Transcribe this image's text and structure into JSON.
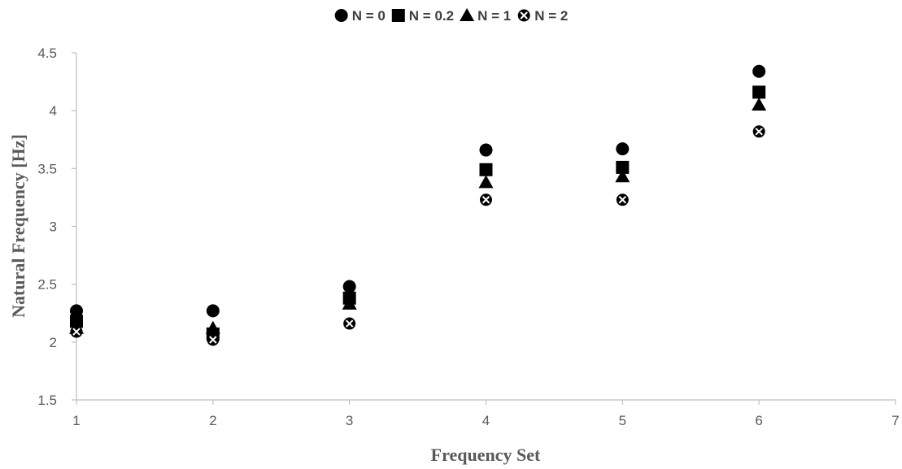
{
  "chart_data": {
    "type": "scatter",
    "title": "",
    "xlabel": "Frequency Set",
    "ylabel": "Natural Frequency [Hz]",
    "xlim": [
      1,
      7
    ],
    "ylim": [
      1.5,
      4.5
    ],
    "x_ticks": [
      "1",
      "2",
      "3",
      "4",
      "5",
      "6",
      "7"
    ],
    "y_ticks": [
      "1.5",
      "2",
      "2.5",
      "3",
      "3.5",
      "4",
      "4.5"
    ],
    "grid": false,
    "legend_position": "top",
    "x": [
      1,
      2,
      3,
      4,
      5,
      6
    ],
    "series": [
      {
        "name": "N = 0",
        "marker": "circle",
        "values": [
          2.27,
          2.27,
          2.48,
          3.66,
          3.67,
          4.34
        ]
      },
      {
        "name": "N = 0.2",
        "marker": "square",
        "values": [
          2.18,
          2.07,
          2.38,
          3.49,
          3.51,
          4.16
        ]
      },
      {
        "name": "N = 1",
        "marker": "triangle",
        "values": [
          2.12,
          2.12,
          2.33,
          3.38,
          3.43,
          4.05
        ]
      },
      {
        "name": "N = 2",
        "marker": "x-circle",
        "values": [
          2.09,
          2.02,
          2.16,
          3.23,
          3.23,
          3.82
        ]
      }
    ],
    "colors": {
      "marker": "#000000",
      "axis": "#bfbfbf",
      "text": "#595959"
    }
  }
}
